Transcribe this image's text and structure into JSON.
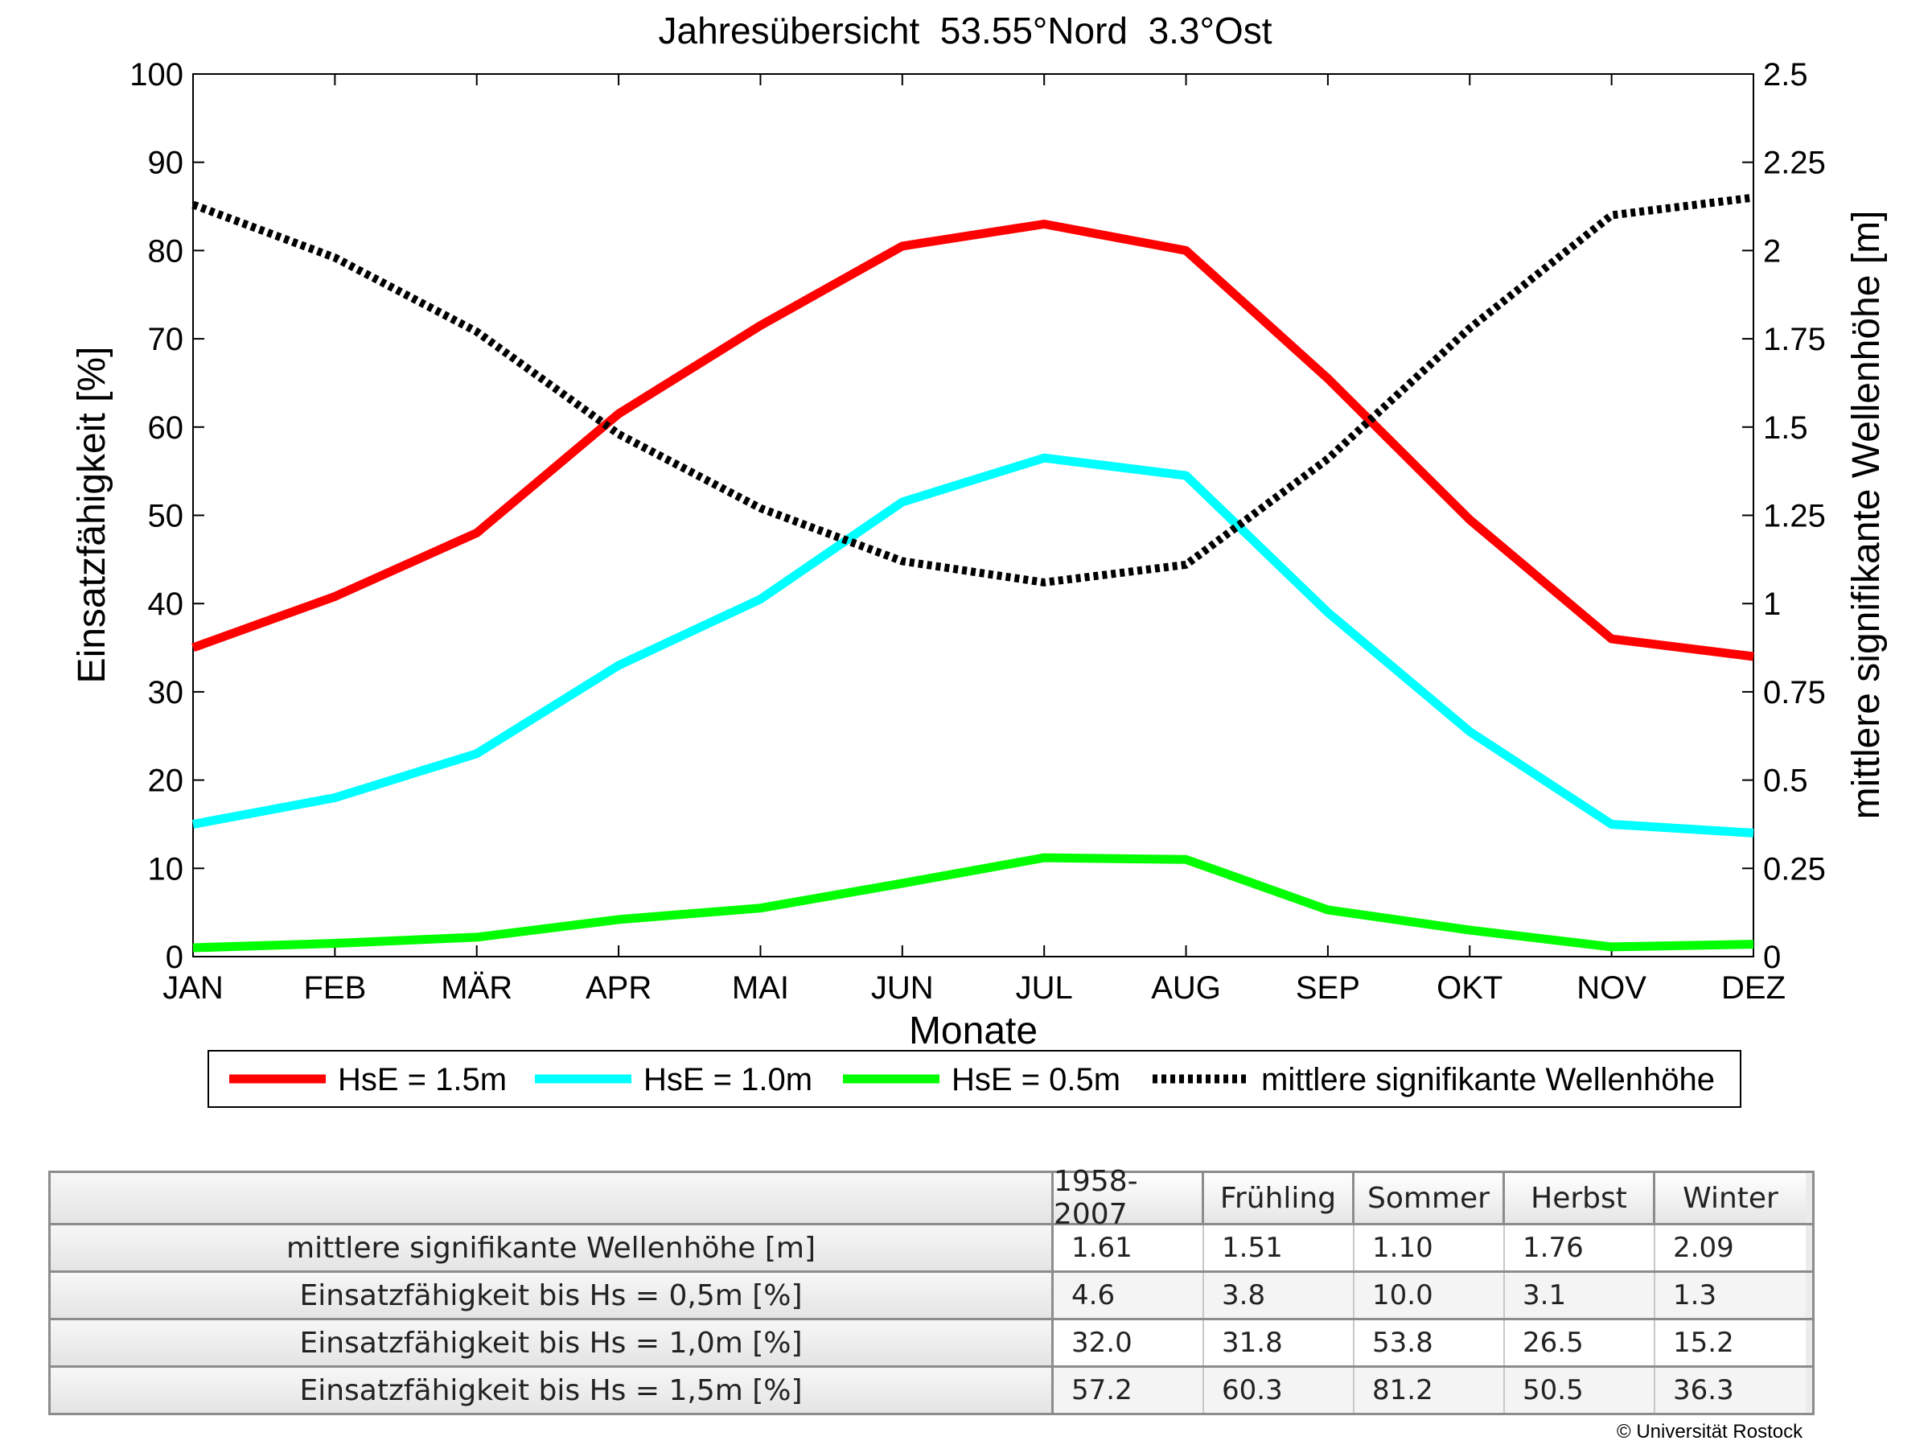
{
  "chart_data": {
    "type": "line",
    "title": "Jahresübersicht  53.55°Nord  3.3°Ost",
    "xlabel": "Monate",
    "ylabel": "Einsatzfähigkeit [%]",
    "y2label": "mittlere signifikante Wellenhöhe [m]",
    "categories": [
      "JAN",
      "FEB",
      "MÄR",
      "APR",
      "MAI",
      "JUN",
      "JUL",
      "AUG",
      "SEP",
      "OKT",
      "NOV",
      "DEZ"
    ],
    "ylim": [
      0,
      100
    ],
    "y2lim": [
      0,
      2.5
    ],
    "yticks": [
      "0",
      "10",
      "20",
      "30",
      "40",
      "50",
      "60",
      "70",
      "80",
      "90",
      "100"
    ],
    "y2ticks": [
      "0",
      "0.25",
      "0.5",
      "0.75",
      "1",
      "1.25",
      "1.5",
      "1.75",
      "2",
      "2.25",
      "2.5"
    ],
    "legend_position": "bottom",
    "series": [
      {
        "name": "HsE = 1.5m",
        "color": "#ff0000",
        "axis": "left",
        "style": "solid",
        "values": [
          35,
          40.8,
          48,
          61.5,
          71.5,
          80.5,
          83,
          80,
          65.5,
          49.5,
          36,
          34
        ]
      },
      {
        "name": "HsE = 1.0m",
        "color": "#00ffff",
        "axis": "left",
        "style": "solid",
        "values": [
          15,
          18,
          23,
          33,
          40.5,
          51.5,
          56.5,
          54.5,
          39,
          25.5,
          15,
          14
        ]
      },
      {
        "name": "HsE = 0.5m",
        "color": "#00ff00",
        "axis": "left",
        "style": "solid",
        "values": [
          1,
          1.5,
          2.2,
          4.2,
          5.5,
          8.3,
          11.2,
          11,
          5.3,
          3,
          1.1,
          1.4
        ]
      },
      {
        "name": "mittlere signifikante Wellenhöhe",
        "color": "#000000",
        "axis": "right",
        "style": "dotted",
        "values": [
          2.13,
          1.98,
          1.77,
          1.48,
          1.27,
          1.12,
          1.06,
          1.11,
          1.41,
          1.78,
          2.1,
          2.15
        ]
      }
    ]
  },
  "table": {
    "columns": [
      "1958-2007",
      "Frühling",
      "Sommer",
      "Herbst",
      "Winter"
    ],
    "rows": [
      {
        "label": "mittlere signifikante Wellenhöhe [m]",
        "values": [
          "1.61",
          "1.51",
          "1.10",
          "1.76",
          "2.09"
        ]
      },
      {
        "label": "Einsatzfähigkeit bis Hs = 0,5m [%]",
        "values": [
          "4.6",
          "3.8",
          "10.0",
          "3.1",
          "1.3"
        ]
      },
      {
        "label": "Einsatzfähigkeit bis Hs = 1,0m [%]",
        "values": [
          "32.0",
          "31.8",
          "53.8",
          "26.5",
          "15.2"
        ]
      },
      {
        "label": "Einsatzfähigkeit bis Hs = 1,5m [%]",
        "values": [
          "57.2",
          "60.3",
          "81.2",
          "50.5",
          "36.3"
        ]
      }
    ]
  },
  "copyright": "© Universität Rostock"
}
